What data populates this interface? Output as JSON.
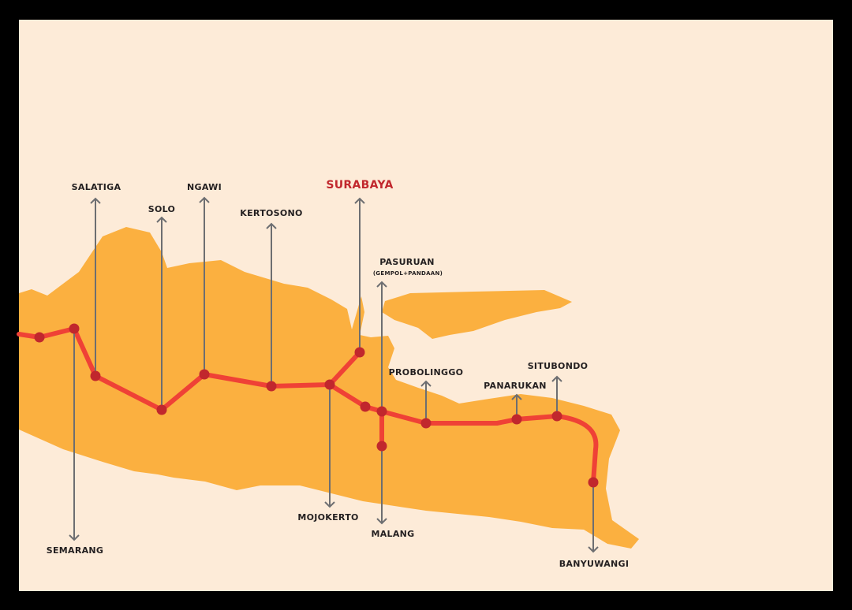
{
  "stations": [
    {
      "label": "SEMARANG"
    },
    {
      "label": "SALATIGA"
    },
    {
      "label": "SOLO"
    },
    {
      "label": "NGAWI"
    },
    {
      "label": "KERTOSONO"
    },
    {
      "label": "SURABAYA"
    },
    {
      "label": "PASURUAN",
      "note": "(GEMPOL+PANDAAN)"
    },
    {
      "label": "MOJOKERTO"
    },
    {
      "label": "MALANG"
    },
    {
      "label": "PROBOLINGGO"
    },
    {
      "label": "PANARUKAN"
    },
    {
      "label": "SITUBONDO"
    },
    {
      "label": "BANYUWANGI"
    }
  ]
}
